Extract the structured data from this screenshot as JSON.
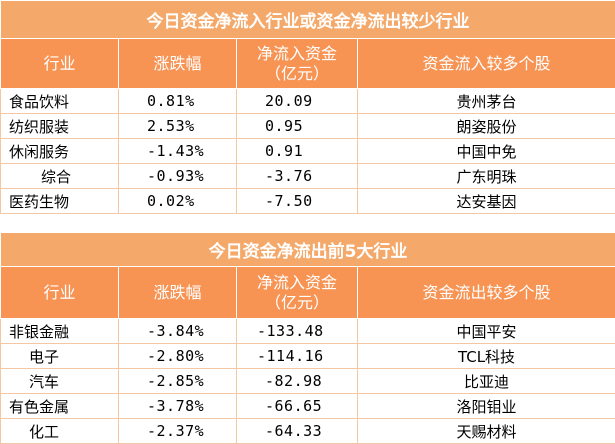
{
  "table1": {
    "title": "今日资金净流入行业或资金净流出较少行业",
    "headers": [
      "行业",
      "涨跌幅",
      "净流入资金\n（亿元）",
      "资金流入较多个股"
    ],
    "rows": [
      [
        "食品饮料",
        "0.81%",
        "20.09",
        "贵州茅台"
      ],
      [
        "纺织服装",
        "2.53%",
        "0.95",
        "朗姿股份"
      ],
      [
        "休闲服务",
        "-1.43%",
        "0.91",
        "中国中免"
      ],
      [
        "综合",
        "-0.93%",
        "-3.76",
        "广东明珠"
      ],
      [
        "医药生物",
        "0.02%",
        "-7.50",
        "达安基因"
      ]
    ]
  },
  "table2": {
    "title": "今日资金净流出前5大行业",
    "headers": [
      "行业",
      "涨跌幅",
      "净流入资金\n（亿元）",
      "资金流出较多个股"
    ],
    "rows": [
      [
        "非银金融",
        "-3.84%",
        "-133.48",
        "中国平安"
      ],
      [
        "电子",
        "-2.80%",
        "-114.16",
        "TCL科技"
      ],
      [
        "汽车",
        "-2.85%",
        "-82.98",
        "比亚迪"
      ],
      [
        "有色金属",
        "-3.78%",
        "-66.65",
        "洛阳钼业"
      ],
      [
        "化工",
        "-2.37%",
        "-64.33",
        "天赐材料"
      ]
    ]
  }
}
